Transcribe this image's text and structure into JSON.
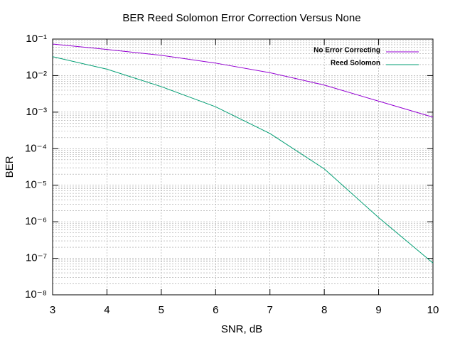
{
  "chart_data": {
    "type": "line",
    "title": "BER Reed Solomon Error Correction Versus None",
    "x_label": "SNR, dB",
    "y_label": "BER",
    "x": [
      3,
      4,
      5,
      6,
      7,
      8,
      9,
      10
    ],
    "series": [
      {
        "name": "No Error Correcting",
        "color": "#9400d3",
        "values": [
          0.073,
          0.052,
          0.036,
          0.022,
          0.012,
          0.0055,
          0.002,
          0.00073
        ]
      },
      {
        "name": "Reed Solomon",
        "color": "#009e73",
        "values": [
          0.033,
          0.015,
          0.005,
          0.0014,
          0.00026,
          2.8e-05,
          1.3e-06,
          7.4e-08
        ]
      }
    ],
    "xlim": [
      3,
      10
    ],
    "xticks": [
      3,
      4,
      5,
      6,
      7,
      8,
      9,
      10
    ],
    "ylim": [
      1e-08,
      0.1
    ],
    "log_y": true,
    "yticks": [
      {
        "value": 0.1,
        "label": "10⁻¹"
      },
      {
        "value": 0.01,
        "label": "10⁻²"
      },
      {
        "value": 0.001,
        "label": "10⁻³"
      },
      {
        "value": 0.0001,
        "label": "10⁻⁴"
      },
      {
        "value": 1e-05,
        "label": "10⁻⁵"
      },
      {
        "value": 1e-06,
        "label": "10⁻⁶"
      },
      {
        "value": 1e-07,
        "label": "10⁻⁷"
      },
      {
        "value": 1e-08,
        "label": "10⁻⁸"
      }
    ],
    "grid": true,
    "legend": "top-right"
  }
}
